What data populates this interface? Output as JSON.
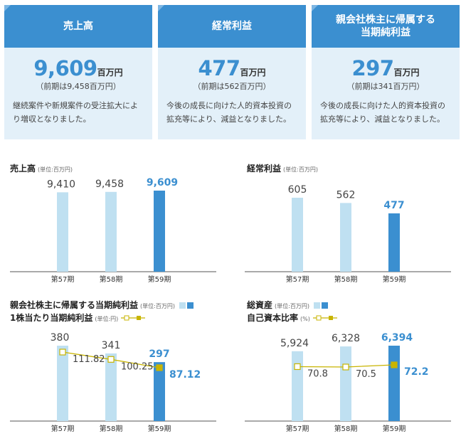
{
  "cards": [
    {
      "title": "売上高",
      "value": "9,609",
      "unit": "百万円",
      "prev": "（前期は9,458百万円）",
      "desc": "継続案件や新規案件の受注拡大により増収となりました。"
    },
    {
      "title": "経常利益",
      "value": "477",
      "unit": "百万円",
      "prev": "（前期は562百万円）",
      "desc": "今後の成長に向けた人的資本投資の拡充等により、減益となりました。"
    },
    {
      "title": "親会社株主に帰属する当期純利益",
      "value": "297",
      "unit": "百万円",
      "prev": "（前期は341百万円）",
      "desc": "今後の成長に向けた人的資本投資の拡充等により、減益となりました。"
    }
  ],
  "panels": {
    "p1": {
      "title": "売上高",
      "unit": "(単位:百万円)"
    },
    "p2": {
      "title": "経常利益",
      "unit": "(単位:百万円)"
    },
    "p3": {
      "title": "親会社株主に帰属する当期純利益",
      "unit": "(単位:百万円)",
      "title2": "1株当たり当期純利益",
      "unit2": "(単位:円)"
    },
    "p4": {
      "title": "総資産",
      "unit": "(単位:百万円)",
      "title2": "自己資本比率",
      "unit2": "(%)"
    }
  },
  "colors": {
    "bar_light": "#bfe0f1",
    "bar_accent": "#3b8fd0",
    "line": "#c8b400"
  },
  "chart_data": [
    {
      "type": "bar",
      "title": "売上高",
      "categories": [
        "第57期",
        "第58期",
        "第59期"
      ],
      "values": [
        9410,
        9458,
        9609
      ],
      "labels": [
        "9,410",
        "9,458",
        "9,609"
      ]
    },
    {
      "type": "bar",
      "title": "経常利益",
      "categories": [
        "第57期",
        "第58期",
        "第59期"
      ],
      "values": [
        605,
        562,
        477
      ],
      "labels": [
        "605",
        "562",
        "477"
      ]
    },
    {
      "type": "bar",
      "title": "親会社株主に帰属する当期純利益",
      "categories": [
        "第57期",
        "第58期",
        "第59期"
      ],
      "series": [
        {
          "name": "親会社株主に帰属する当期純利益",
          "values": [
            380,
            341,
            297
          ],
          "labels": [
            "380",
            "341",
            "297"
          ]
        },
        {
          "name": "1株当たり当期純利益",
          "values": [
            111.82,
            100.25,
            87.12
          ],
          "labels": [
            "111.82",
            "100.25",
            "87.12"
          ]
        }
      ]
    },
    {
      "type": "bar",
      "title": "総資産",
      "categories": [
        "第57期",
        "第58期",
        "第59期"
      ],
      "series": [
        {
          "name": "総資産",
          "values": [
            5924,
            6328,
            6394
          ],
          "labels": [
            "5,924",
            "6,328",
            "6,394"
          ]
        },
        {
          "name": "自己資本比率",
          "values": [
            70.8,
            70.5,
            72.2
          ],
          "labels": [
            "70.8",
            "70.5",
            "72.2"
          ]
        }
      ]
    }
  ]
}
